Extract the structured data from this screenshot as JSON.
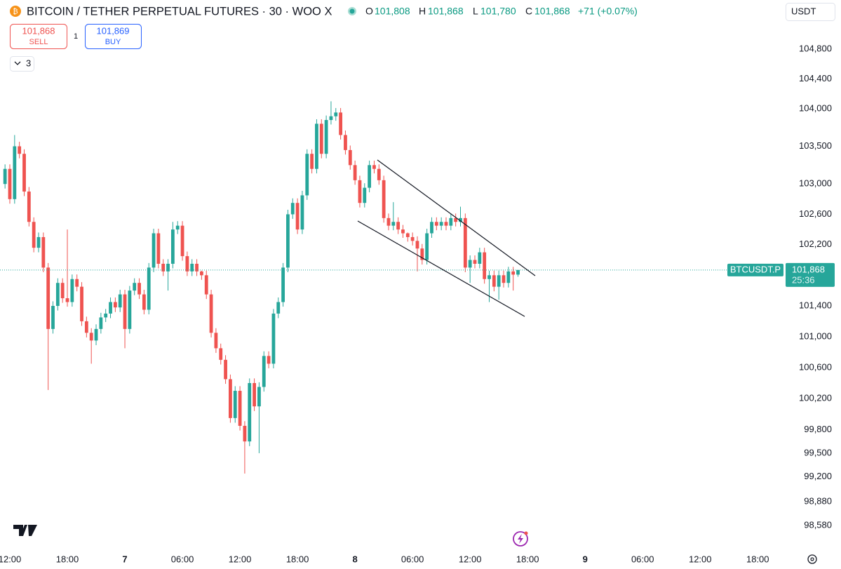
{
  "header": {
    "title": "BITCOIN / TETHER PERPETUAL FUTURES · 30 · WOO X",
    "ohlc": [
      {
        "label": "O",
        "value": "101,808"
      },
      {
        "label": "H",
        "value": "101,868"
      },
      {
        "label": "L",
        "value": "101,780"
      },
      {
        "label": "C",
        "value": "101,868"
      }
    ],
    "change": "+71 (+0.07%)",
    "sell": {
      "price": "101,868",
      "label": "SELL"
    },
    "quantity": "1",
    "buy": {
      "price": "101,869",
      "label": "BUY"
    },
    "indicators": "3",
    "currency": "USDT"
  },
  "chart_data": {
    "type": "candlestick",
    "log": true,
    "grid": false,
    "up_color": "#26a69a",
    "down_color": "#ef5350",
    "x": [
      11.5,
      12,
      12.5,
      13,
      13.5,
      14,
      14.5,
      15,
      15.5,
      16,
      16.5,
      17,
      17.5,
      18,
      18.5,
      19,
      19.5,
      20,
      20.5,
      21,
      21.5,
      22,
      22.5,
      23,
      23.5,
      24,
      24.5,
      25,
      25.5,
      26,
      26.5,
      27,
      27.5,
      28,
      28.5,
      29,
      29.5,
      30,
      30.5,
      31,
      31.5,
      32,
      32.5,
      33,
      33.5,
      34,
      34.5,
      35,
      35.5,
      36,
      36.5,
      37,
      37.5,
      38,
      38.5,
      39,
      39.5,
      40,
      40.5,
      41,
      41.5,
      42,
      42.5,
      43,
      43.5,
      44,
      44.5,
      45,
      45.5,
      46,
      46.5,
      47,
      47.5,
      48,
      48.5,
      49,
      49.5,
      50,
      50.5,
      51,
      51.5,
      52,
      52.5,
      53,
      53.5,
      54,
      54.5,
      55,
      55.5,
      56,
      56.5,
      57,
      57.5,
      58,
      58.5,
      59,
      59.5,
      60,
      60.5,
      61,
      61.5,
      62,
      62.5,
      63,
      63.5,
      64,
      64.5,
      65
    ],
    "open": [
      103000,
      103200,
      102800,
      103500,
      103400,
      102900,
      102500,
      102160,
      102300,
      101900,
      101100,
      101400,
      101700,
      101500,
      101450,
      101750,
      101650,
      101200,
      101050,
      100950,
      101100,
      101250,
      101300,
      101450,
      101380,
      101550,
      101100,
      101600,
      101700,
      101550,
      101350,
      101900,
      102350,
      101950,
      101850,
      101950,
      102400,
      102450,
      102050,
      101850,
      101950,
      101850,
      101800,
      101550,
      101050,
      100850,
      100700,
      100450,
      99950,
      100300,
      99850,
      99650,
      100400,
      100100,
      100350,
      100750,
      100650,
      101300,
      101450,
      101900,
      102600,
      102750,
      102400,
      102850,
      103400,
      103200,
      103800,
      103400,
      103850,
      103900,
      103950,
      103650,
      103450,
      103250,
      103050,
      102750,
      102950,
      103250,
      103200,
      103050,
      102550,
      102450,
      102500,
      102400,
      102350,
      102300,
      102250,
      102150,
      102000,
      102350,
      102500,
      102450,
      102500,
      102450,
      102550,
      102500,
      102550,
      101900,
      102000,
      101950,
      102100,
      101750,
      101800,
      101650,
      101800,
      101700,
      101850,
      101808
    ],
    "high": [
      103260,
      103260,
      103650,
      103560,
      103460,
      102960,
      102560,
      102360,
      102360,
      101960,
      101460,
      101760,
      101760,
      102400,
      101810,
      101810,
      101710,
      101260,
      101110,
      101160,
      101310,
      101360,
      101510,
      101510,
      101610,
      101610,
      101660,
      101760,
      101760,
      101610,
      101960,
      102410,
      102410,
      102010,
      102010,
      102500,
      102510,
      102510,
      102110,
      102010,
      102010,
      101860,
      101860,
      101610,
      101110,
      100910,
      100760,
      100510,
      100360,
      100360,
      99910,
      100460,
      100460,
      100410,
      100810,
      100810,
      101360,
      101510,
      101960,
      102660,
      102810,
      102810,
      102910,
      103460,
      103460,
      103860,
      103860,
      103910,
      104100,
      104010,
      104010,
      103710,
      103510,
      103310,
      103110,
      103010,
      103310,
      103310,
      103260,
      103110,
      102610,
      102760,
      102560,
      102460,
      102360,
      102360,
      102310,
      102210,
      102410,
      102560,
      102560,
      102560,
      102560,
      102610,
      102610,
      102700,
      102610,
      102060,
      102060,
      102160,
      102160,
      101860,
      101860,
      101860,
      101860,
      101910,
      101910,
      101868
    ],
    "low": [
      102940,
      102740,
      102740,
      103340,
      102840,
      102440,
      102100,
      102100,
      101840,
      100310,
      101040,
      101340,
      101440,
      101390,
      101390,
      101590,
      101140,
      100990,
      100650,
      100890,
      101040,
      101190,
      101240,
      101320,
      101320,
      100850,
      101040,
      101540,
      101490,
      101290,
      101290,
      101840,
      101890,
      101790,
      101600,
      101890,
      102340,
      101990,
      101790,
      101790,
      101790,
      101740,
      101490,
      100990,
      100790,
      100640,
      100390,
      99890,
      99890,
      99790,
      99240,
      99590,
      100040,
      99500,
      100290,
      100590,
      100590,
      101240,
      101390,
      101840,
      102540,
      102340,
      102340,
      102790,
      103140,
      103140,
      103340,
      103340,
      103790,
      103840,
      103590,
      103390,
      103190,
      102990,
      102690,
      102690,
      102890,
      103140,
      102990,
      102490,
      102390,
      102390,
      102340,
      102290,
      102240,
      102190,
      101850,
      101940,
      101940,
      102290,
      102390,
      102390,
      102390,
      102390,
      102440,
      102440,
      101840,
      101700,
      101890,
      101890,
      101690,
      101450,
      101590,
      101480,
      101640,
      101640,
      101600,
      101780
    ],
    "close": [
      103200,
      102800,
      103500,
      103400,
      102900,
      102500,
      102160,
      102300,
      101900,
      101100,
      101400,
      101700,
      101500,
      101450,
      101750,
      101650,
      101200,
      101050,
      100950,
      101100,
      101250,
      101300,
      101450,
      101380,
      101550,
      101100,
      101600,
      101700,
      101550,
      101350,
      101900,
      102350,
      101950,
      101850,
      101950,
      102400,
      102450,
      102050,
      101850,
      101950,
      101850,
      101800,
      101550,
      101050,
      100850,
      100700,
      100450,
      99950,
      100300,
      99850,
      99650,
      100400,
      100100,
      100350,
      100750,
      100650,
      101300,
      101450,
      101900,
      102600,
      102750,
      102400,
      102850,
      103400,
      103200,
      103800,
      103400,
      103850,
      103900,
      103950,
      103650,
      103450,
      103250,
      103050,
      102750,
      102950,
      103250,
      103200,
      103050,
      102550,
      102450,
      102500,
      102400,
      102350,
      102300,
      102250,
      102150,
      102000,
      102350,
      102500,
      102450,
      102500,
      102450,
      102550,
      102500,
      102550,
      101900,
      102000,
      101950,
      102100,
      101750,
      101800,
      101650,
      101800,
      101700,
      101850,
      101808,
      101868
    ],
    "xlim": [
      10.976,
      92.76
    ],
    "xticks": [
      {
        "value": 12,
        "label": "12:00"
      },
      {
        "value": 18,
        "label": "18:00"
      },
      {
        "value": 24,
        "label": "7"
      },
      {
        "value": 30,
        "label": "06:00"
      },
      {
        "value": 36,
        "label": "12:00"
      },
      {
        "value": 42,
        "label": "18:00"
      },
      {
        "value": 48,
        "label": "8"
      },
      {
        "value": 54,
        "label": "06:00"
      },
      {
        "value": 60,
        "label": "12:00"
      },
      {
        "value": 66,
        "label": "18:00"
      },
      {
        "value": 72,
        "label": "9"
      },
      {
        "value": 78,
        "label": "06:00"
      },
      {
        "value": 84,
        "label": "12:00"
      },
      {
        "value": 90,
        "label": "18:00"
      }
    ],
    "ylim": [
      98305,
      105463
    ],
    "yticks": [
      {
        "value": 104800,
        "label": "104,800"
      },
      {
        "value": 104400,
        "label": "104,400"
      },
      {
        "value": 104000,
        "label": "104,000"
      },
      {
        "value": 103500,
        "label": "103,500"
      },
      {
        "value": 103000,
        "label": "103,000"
      },
      {
        "value": 102600,
        "label": "102,600"
      },
      {
        "value": 102200,
        "label": "102,200"
      },
      {
        "value": 101400,
        "label": "101,400"
      },
      {
        "value": 101000,
        "label": "101,000"
      },
      {
        "value": 100600,
        "label": "100,600"
      },
      {
        "value": 100200,
        "label": "100,200"
      },
      {
        "value": 99800,
        "label": "99,800"
      },
      {
        "value": 99500,
        "label": "99,500"
      },
      {
        "value": 99200,
        "label": "99,200"
      },
      {
        "value": 98880,
        "label": "98,880"
      },
      {
        "value": 98580,
        "label": "98,580"
      }
    ],
    "last_price": {
      "value": 101868,
      "label": "101,868"
    },
    "symbol": "BTCUSDT.P",
    "countdown": "25:36"
  }
}
